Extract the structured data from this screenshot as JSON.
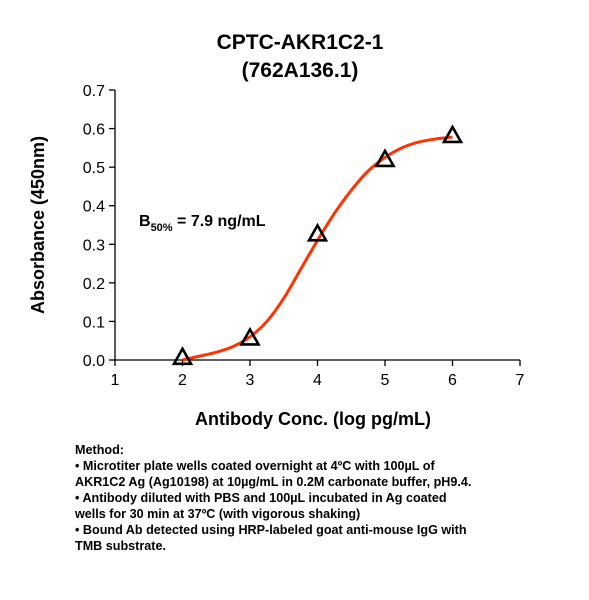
{
  "chart_data": {
    "type": "scatter",
    "title_lines": [
      "CPTC-AKR1C2-1",
      "(762A136.1)"
    ],
    "xlabel": "Antibody Conc. (log pg/mL)",
    "ylabel": "Absorbance (450nm)",
    "xlim": [
      1,
      7
    ],
    "ylim": [
      0.0,
      0.7
    ],
    "x_ticks": [
      "1",
      "2",
      "3",
      "4",
      "5",
      "6",
      "7"
    ],
    "y_ticks": [
      "0.0",
      "0.1",
      "0.2",
      "0.3",
      "0.4",
      "0.5",
      "0.6",
      "0.7"
    ],
    "series": [
      {
        "marker": "triangle",
        "x": [
          2,
          3,
          4,
          5,
          6
        ],
        "y": [
          0.005,
          0.055,
          0.325,
          0.518,
          0.58
        ]
      }
    ],
    "fit_curve": {
      "color": "#ff3300",
      "x": [
        2.0,
        2.25,
        2.5,
        2.75,
        3.0,
        3.25,
        3.5,
        3.75,
        4.0,
        4.25,
        4.5,
        4.75,
        5.0,
        5.25,
        5.5,
        5.75,
        6.0
      ],
      "y": [
        0.0,
        0.01,
        0.02,
        0.035,
        0.06,
        0.1,
        0.16,
        0.235,
        0.31,
        0.38,
        0.44,
        0.49,
        0.525,
        0.55,
        0.565,
        0.573,
        0.578
      ]
    },
    "annotation": {
      "prefix": "B",
      "subscript": "50%",
      "value": " = 7.9 ng/mL"
    },
    "grid": false,
    "legend": "none"
  },
  "method": {
    "heading": "Method:",
    "lines": [
      "• Microtiter plate wells coated overnight at 4ºC with 100µL of",
      "AKR1C2  Ag (Ag10198) at 10µg/mL in 0.2M carbonate buffer, pH9.4.",
      "• Antibody diluted with PBS and 100µL incubated in Ag coated",
      "wells for 30 min at 37ºC (with vigorous shaking)",
      "• Bound Ab detected using HRP-labeled goat anti-mouse IgG with",
      "TMB substrate."
    ]
  }
}
